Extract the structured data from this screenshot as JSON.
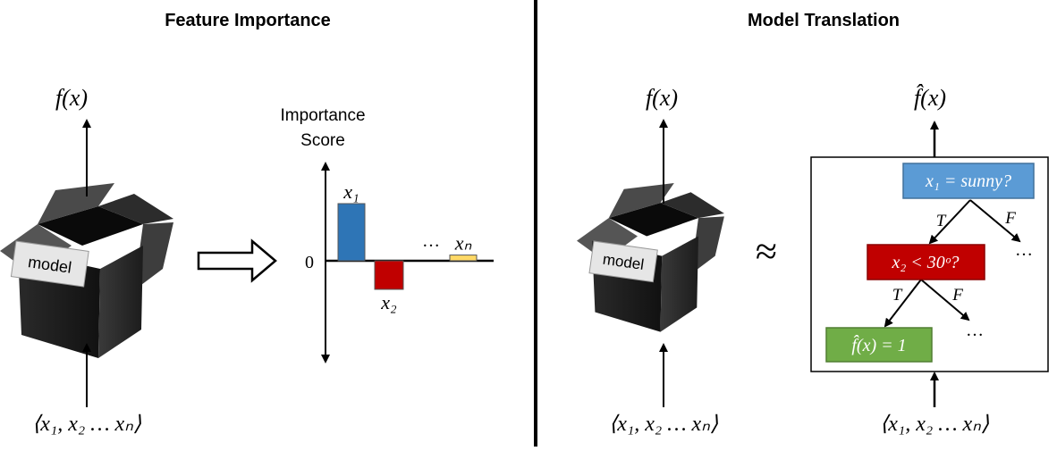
{
  "panels": {
    "left_title": "Feature Importance",
    "right_title": "Model Translation"
  },
  "box": {
    "label": "model"
  },
  "left": {
    "output_label": "f(x)",
    "input_label": "⟨x₁, x₂ … xₙ⟩"
  },
  "chart": {
    "title_line1": "Importance",
    "title_line2": "Score",
    "zero_label": "0",
    "ellipsis": "…",
    "bar_labels": [
      "x₁",
      "x₂",
      "xₙ"
    ]
  },
  "chart_data": {
    "type": "bar",
    "categories": [
      "x₁",
      "x₂",
      "xₙ"
    ],
    "values": [
      1.0,
      -0.5,
      0.1
    ],
    "colors": [
      "#2e75b6",
      "#c00000",
      "#ffd966"
    ],
    "title": "Importance Score"
  },
  "right": {
    "output_label": "f(x)",
    "surrogate_output_label": "f̂(x)",
    "approx_symbol": "≈",
    "input_label": "⟨x₁, x₂ … xₙ⟩",
    "surrogate_input_label": "⟨x₁, x₂ … xₙ⟩"
  },
  "tree": {
    "root_label": "x₁ = sunny?",
    "mid_label": "x₂ < 30ᵒ?",
    "leaf_label": "f̂(x) = 1",
    "true_label": "T",
    "false_label": "F",
    "ellipsis": "…",
    "colors": {
      "root": "#5b9bd5",
      "mid": "#c00000",
      "leaf": "#70ad47"
    }
  }
}
